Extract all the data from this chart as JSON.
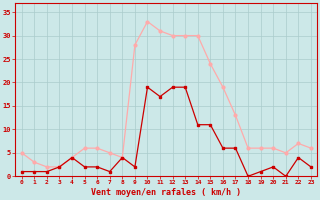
{
  "hours": [
    0,
    1,
    2,
    3,
    4,
    5,
    6,
    7,
    8,
    9,
    10,
    11,
    12,
    13,
    14,
    15,
    16,
    17,
    18,
    19,
    20,
    21,
    22,
    23
  ],
  "wind_avg": [
    1,
    1,
    1,
    2,
    4,
    2,
    2,
    1,
    4,
    2,
    19,
    17,
    19,
    19,
    11,
    11,
    6,
    6,
    0,
    1,
    2,
    0,
    4,
    2
  ],
  "wind_gust": [
    5,
    3,
    2,
    2,
    4,
    6,
    6,
    5,
    4,
    28,
    33,
    31,
    30,
    30,
    30,
    24,
    19,
    13,
    6,
    6,
    6,
    5,
    7,
    6
  ],
  "avg_color": "#cc0000",
  "gust_color": "#ffaaaa",
  "bg_color": "#cce8e8",
  "grid_color": "#aacccc",
  "xlabel": "Vent moyen/en rafales ( km/h )",
  "ylim": [
    0,
    37
  ],
  "yticks": [
    0,
    5,
    10,
    15,
    20,
    25,
    30,
    35
  ],
  "axis_color": "#cc0000",
  "tick_color": "#cc0000"
}
